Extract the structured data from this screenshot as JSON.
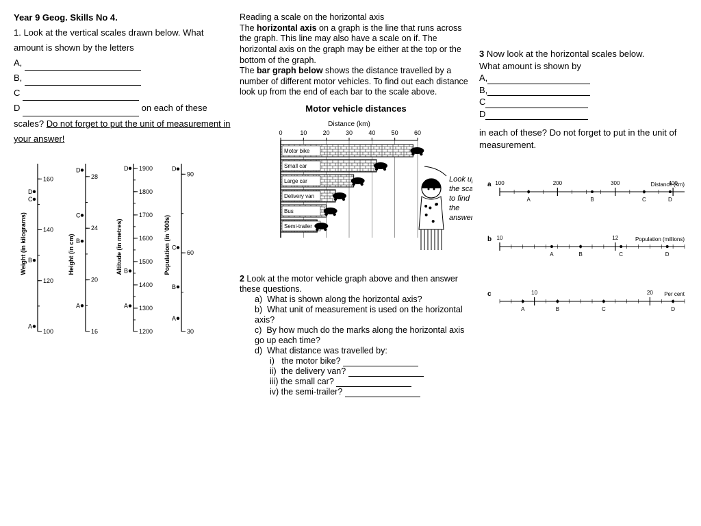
{
  "title": "Year 9 Geog. Skills No 4.",
  "q1": {
    "intro": "1. Look at the vertical scales drawn below. What amount is shown by the letters",
    "tail1": "on each of these scales? ",
    "tail2": "Do not forget to put the unit of measurement in your answer!"
  },
  "vscales": [
    {
      "label": "Weight (in kilograms)",
      "min": 100,
      "max": 166,
      "ticks": [
        100,
        120,
        140,
        160
      ],
      "points": {
        "A": 102,
        "B": 128,
        "C": 152,
        "D": 155
      }
    },
    {
      "label": "Height (in cm)",
      "min": 16,
      "max": 29,
      "ticks": [
        16,
        20,
        24,
        28
      ],
      "points": {
        "A": 18,
        "B": 23,
        "C": 25,
        "D": 28.5
      }
    },
    {
      "label": "Altitude (in metres)",
      "min": 1200,
      "max": 1920,
      "ticks": [
        1200,
        1300,
        1400,
        1500,
        1600,
        1700,
        1800,
        1900
      ],
      "points": {
        "A": 1310,
        "B": 1460,
        "D": 1900
      }
    },
    {
      "label": "Population (in '000s)",
      "min": 30,
      "max": 94,
      "ticks": [
        30,
        60,
        90
      ],
      "points": {
        "A": 35,
        "B": 47,
        "C": 62,
        "D": 92
      }
    }
  ],
  "mid": {
    "p1a": "Reading a scale on the horizontal axis",
    "p1b": "The ",
    "p1c": "horizontal axis",
    "p1d": " on a graph is the line that runs across the graph. This line may also have a scale on if. The horizontal axis on the graph may be either at the top or the bottom of the graph.",
    "p2a": "   The ",
    "p2b": "bar graph below",
    "p2c": " shows the distance travelled by a number of different motor vehicles. To find out each distance look up from the end of each bar to the scale above.",
    "chartTitle": "Motor vehicle distances",
    "xLabel": "Distance (km)",
    "xTicks": [
      0,
      10,
      20,
      30,
      40,
      50,
      60
    ],
    "bars": [
      {
        "label": "Motor bike",
        "value": 58
      },
      {
        "label": "Small car",
        "value": 42
      },
      {
        "label": "Large car",
        "value": 32
      },
      {
        "label": "Delivery van",
        "value": 24
      },
      {
        "label": "Bus",
        "value": 20
      },
      {
        "label": "Semi-trailer",
        "value": 16
      }
    ],
    "callout": "Look up at the scale to find the answer."
  },
  "q2": {
    "intro1": "2",
    "intro2": " Look at the motor vehicle graph above and then answer these questions.",
    "a": "What is shown along the horizontal axis?",
    "b": "What unit of measurement is used on the horizontal axis?",
    "c": "By how much do the marks along the horizontal axis go up each time?",
    "d": "What distance was travelled by:",
    "d1": "the motor bike?",
    "d2": "the delivery van?",
    "d3": "the small car?",
    "d4": "the semi-trailer?"
  },
  "q3": {
    "intro1": "3",
    "intro2": " Now look at the horizontal scales below.",
    "intro3": "What amount is shown by",
    "tail": "in each of these? Do not forget to put in the unit of measurement."
  },
  "hscales": [
    {
      "id": "a",
      "label": "Distance (km)",
      "min": 100,
      "max": 420,
      "majors": [
        100,
        200,
        300,
        400
      ],
      "minorsPer": 4,
      "points": {
        "A": 150,
        "B": 260,
        "C": 350,
        "D": 395
      }
    },
    {
      "id": "b",
      "label": "Population (millions)",
      "min": 10,
      "max": 13.2,
      "majors": [
        10,
        12
      ],
      "minorsPer": 10,
      "points": {
        "A": 10.9,
        "B": 11.4,
        "C": 12.1,
        "D": 12.9
      }
    },
    {
      "id": "c",
      "label": "Per cent",
      "min": 7,
      "max": 23,
      "majors": [
        10,
        20
      ],
      "minorsPer": 10,
      "points": {
        "A": 9,
        "B": 12,
        "C": 16,
        "D": 22
      }
    }
  ],
  "style": {
    "stroke": "#000",
    "fontSize": 9
  }
}
